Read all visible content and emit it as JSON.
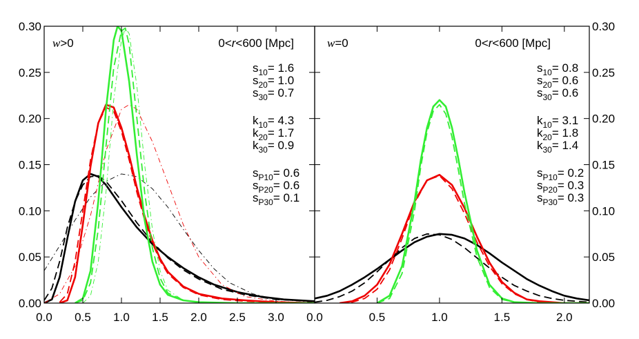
{
  "chart_data": [
    {
      "type": "line",
      "panel": "left",
      "title": "",
      "xlabel": "",
      "ylabel": "",
      "xlim": [
        0.0,
        3.5
      ],
      "ylim": [
        0.0,
        0.3
      ],
      "x_ticks": [
        "0.0",
        "0.5",
        "1.0",
        "1.5",
        "2.0",
        "2.5",
        "3.0"
      ],
      "x_tick_values": [
        0.0,
        0.5,
        1.0,
        1.5,
        2.0,
        2.5,
        3.0
      ],
      "y_ticks": [
        "0.00",
        "0.05",
        "0.10",
        "0.15",
        "0.20",
        "0.25",
        "0.30"
      ],
      "y_tick_values": [
        0.0,
        0.05,
        0.1,
        0.15,
        0.2,
        0.25,
        0.3
      ],
      "y_tick_side": "left",
      "corner_label": {
        "italic": "w",
        "rest": ">0"
      },
      "range_label": {
        "pre": "0<",
        "italic": "r",
        "post": "<600 [Mpc]"
      },
      "stats": [
        {
          "name": "s",
          "sub": "10",
          "value": "= 1.6"
        },
        {
          "name": "s",
          "sub": "20",
          "value": "= 1.0"
        },
        {
          "name": "s",
          "sub": "30",
          "value": "= 0.7"
        },
        {
          "name": "k",
          "sub": "10",
          "value": "= 4.3"
        },
        {
          "name": "k",
          "sub": "20",
          "value": "= 1.7"
        },
        {
          "name": "k",
          "sub": "30",
          "value": "= 0.9"
        },
        {
          "name": "s",
          "sub": "P10",
          "value": "= 0.6"
        },
        {
          "name": "s",
          "sub": "P20",
          "value": "= 0.6"
        },
        {
          "name": "s",
          "sub": "P30",
          "value": "= 0.1"
        }
      ],
      "series": [
        {
          "color": "#000000",
          "style": "solid",
          "width": 2.6,
          "x": [
            0.0,
            0.1,
            0.2,
            0.3,
            0.4,
            0.5,
            0.6,
            0.7,
            0.8,
            0.9,
            1.0,
            1.2,
            1.4,
            1.6,
            1.8,
            2.0,
            2.2,
            2.5,
            2.8,
            3.1,
            3.5
          ],
          "y": [
            0.0,
            0.004,
            0.028,
            0.07,
            0.11,
            0.133,
            0.14,
            0.137,
            0.128,
            0.116,
            0.104,
            0.082,
            0.064,
            0.05,
            0.038,
            0.028,
            0.02,
            0.012,
            0.007,
            0.004,
            0.002
          ]
        },
        {
          "color": "#000000",
          "style": "dashed",
          "width": 1.8,
          "x": [
            0.0,
            0.1,
            0.2,
            0.3,
            0.4,
            0.5,
            0.6,
            0.7,
            0.8,
            1.0,
            1.2,
            1.4,
            1.6,
            1.8,
            2.0,
            2.3,
            2.6,
            3.0,
            3.5
          ],
          "y": [
            0.003,
            0.016,
            0.045,
            0.082,
            0.11,
            0.128,
            0.137,
            0.138,
            0.132,
            0.111,
            0.087,
            0.066,
            0.049,
            0.036,
            0.026,
            0.015,
            0.009,
            0.004,
            0.002
          ]
        },
        {
          "color": "#000000",
          "style": "dashdot",
          "width": 0.9,
          "x": [
            0.0,
            0.2,
            0.4,
            0.6,
            0.8,
            1.0,
            1.2,
            1.4,
            1.6,
            1.8,
            2.0,
            2.2,
            2.4,
            2.7,
            3.0,
            3.5
          ],
          "y": [
            0.035,
            0.062,
            0.09,
            0.115,
            0.132,
            0.14,
            0.137,
            0.124,
            0.104,
            0.08,
            0.057,
            0.037,
            0.022,
            0.01,
            0.004,
            0.001
          ]
        },
        {
          "color": "#ee0000",
          "style": "solid",
          "width": 2.6,
          "x": [
            0.2,
            0.3,
            0.4,
            0.5,
            0.6,
            0.7,
            0.8,
            0.9,
            1.0,
            1.1,
            1.2,
            1.3,
            1.4,
            1.5,
            1.6,
            1.8,
            2.0,
            2.3,
            2.6,
            3.0,
            3.5
          ],
          "y": [
            0.0,
            0.003,
            0.028,
            0.085,
            0.148,
            0.195,
            0.215,
            0.212,
            0.19,
            0.16,
            0.125,
            0.094,
            0.068,
            0.048,
            0.034,
            0.018,
            0.01,
            0.005,
            0.003,
            0.001,
            0.0
          ]
        },
        {
          "color": "#ee0000",
          "style": "dashed",
          "width": 1.8,
          "x": [
            0.2,
            0.3,
            0.4,
            0.5,
            0.6,
            0.7,
            0.8,
            0.9,
            1.0,
            1.1,
            1.2,
            1.3,
            1.4,
            1.5,
            1.6,
            1.8,
            2.0,
            2.3,
            2.6,
            3.0,
            3.5
          ],
          "y": [
            0.001,
            0.01,
            0.045,
            0.1,
            0.155,
            0.195,
            0.212,
            0.208,
            0.186,
            0.155,
            0.12,
            0.09,
            0.065,
            0.046,
            0.032,
            0.017,
            0.009,
            0.004,
            0.002,
            0.001,
            0.0
          ]
        },
        {
          "color": "#ee0000",
          "style": "dashdot",
          "width": 0.9,
          "x": [
            0.0,
            0.2,
            0.4,
            0.6,
            0.8,
            1.0,
            1.1,
            1.2,
            1.4,
            1.6,
            1.8,
            2.0,
            2.3,
            2.6,
            3.0,
            3.5
          ],
          "y": [
            0.0,
            0.01,
            0.04,
            0.095,
            0.165,
            0.21,
            0.215,
            0.21,
            0.175,
            0.13,
            0.085,
            0.05,
            0.02,
            0.007,
            0.002,
            0.0
          ]
        },
        {
          "color": "#33ee33",
          "style": "solid",
          "width": 2.6,
          "x": [
            0.4,
            0.5,
            0.6,
            0.7,
            0.8,
            0.9,
            0.95,
            1.0,
            1.1,
            1.2,
            1.3,
            1.4,
            1.5,
            1.6,
            1.8,
            2.0,
            2.5,
            3.0,
            3.5
          ],
          "y": [
            0.0,
            0.005,
            0.035,
            0.11,
            0.21,
            0.285,
            0.3,
            0.295,
            0.24,
            0.16,
            0.09,
            0.045,
            0.02,
            0.009,
            0.003,
            0.001,
            0.0,
            0.0,
            0.0
          ]
        },
        {
          "color": "#33ee33",
          "style": "dashed",
          "width": 1.8,
          "x": [
            0.4,
            0.5,
            0.6,
            0.7,
            0.8,
            0.9,
            1.0,
            1.05,
            1.1,
            1.2,
            1.3,
            1.4,
            1.5,
            1.6,
            1.8,
            2.0,
            2.5,
            3.5
          ],
          "y": [
            0.0,
            0.003,
            0.022,
            0.08,
            0.17,
            0.255,
            0.295,
            0.298,
            0.28,
            0.2,
            0.12,
            0.06,
            0.027,
            0.011,
            0.003,
            0.001,
            0.0,
            0.0
          ]
        },
        {
          "color": "#33ee33",
          "style": "dashdot",
          "width": 0.9,
          "x": [
            0.5,
            0.6,
            0.7,
            0.8,
            0.9,
            1.0,
            1.05,
            1.1,
            1.2,
            1.3,
            1.4,
            1.5,
            1.6,
            1.8,
            2.0,
            2.5
          ],
          "y": [
            0.0,
            0.008,
            0.045,
            0.12,
            0.22,
            0.285,
            0.298,
            0.292,
            0.235,
            0.15,
            0.08,
            0.035,
            0.014,
            0.003,
            0.001,
            0.0
          ]
        }
      ]
    },
    {
      "type": "line",
      "panel": "right",
      "title": "",
      "xlabel": "",
      "ylabel": "",
      "xlim": [
        0.0,
        2.2
      ],
      "ylim": [
        0.0,
        0.3
      ],
      "x_ticks": [
        "0.0",
        "0.5",
        "1.0",
        "1.5",
        "2.0"
      ],
      "x_tick_values": [
        0.0,
        0.5,
        1.0,
        1.5,
        2.0
      ],
      "y_ticks": [
        "0.00",
        "0.05",
        "0.10",
        "0.15",
        "0.20",
        "0.25",
        "0.30"
      ],
      "y_tick_values": [
        0.0,
        0.05,
        0.1,
        0.15,
        0.2,
        0.25,
        0.3
      ],
      "y_tick_side": "right",
      "corner_label": {
        "italic": "w",
        "rest": "=0"
      },
      "range_label": {
        "pre": "0<",
        "italic": "r",
        "post": "<600 [Mpc]"
      },
      "stats": [
        {
          "name": "s",
          "sub": "10",
          "value": "= 0.8"
        },
        {
          "name": "s",
          "sub": "20",
          "value": "= 0.6"
        },
        {
          "name": "s",
          "sub": "30",
          "value": "= 0.6"
        },
        {
          "name": "k",
          "sub": "10",
          "value": "= 3.1"
        },
        {
          "name": "k",
          "sub": "20",
          "value": "= 1.8"
        },
        {
          "name": "k",
          "sub": "30",
          "value": "= 1.4"
        },
        {
          "name": "s",
          "sub": "P10",
          "value": "= 0.2"
        },
        {
          "name": "s",
          "sub": "P20",
          "value": "= 0.3"
        },
        {
          "name": "s",
          "sub": "P30",
          "value": "= 0.3"
        }
      ],
      "series": [
        {
          "color": "#000000",
          "style": "solid",
          "width": 2.6,
          "x": [
            0.0,
            0.1,
            0.2,
            0.3,
            0.4,
            0.5,
            0.6,
            0.7,
            0.8,
            0.9,
            1.0,
            1.1,
            1.2,
            1.3,
            1.4,
            1.5,
            1.6,
            1.7,
            1.8,
            1.9,
            2.0,
            2.1,
            2.2
          ],
          "y": [
            0.005,
            0.008,
            0.013,
            0.02,
            0.028,
            0.037,
            0.047,
            0.057,
            0.066,
            0.072,
            0.075,
            0.074,
            0.07,
            0.063,
            0.054,
            0.044,
            0.035,
            0.026,
            0.019,
            0.013,
            0.008,
            0.005,
            0.003
          ]
        },
        {
          "color": "#000000",
          "style": "dashed",
          "width": 1.8,
          "x": [
            0.0,
            0.1,
            0.2,
            0.3,
            0.4,
            0.5,
            0.6,
            0.7,
            0.8,
            0.9,
            1.0,
            1.1,
            1.2,
            1.3,
            1.4,
            1.5,
            1.6,
            1.7,
            1.8,
            1.9,
            2.0,
            2.2
          ],
          "y": [
            0.001,
            0.003,
            0.007,
            0.013,
            0.022,
            0.034,
            0.047,
            0.06,
            0.07,
            0.075,
            0.074,
            0.069,
            0.06,
            0.049,
            0.038,
            0.028,
            0.019,
            0.013,
            0.008,
            0.005,
            0.003,
            0.001
          ]
        },
        {
          "color": "#ee0000",
          "style": "solid",
          "width": 2.6,
          "x": [
            0.2,
            0.3,
            0.4,
            0.5,
            0.6,
            0.7,
            0.8,
            0.9,
            1.0,
            1.1,
            1.2,
            1.3,
            1.4,
            1.5,
            1.6,
            1.7,
            1.8,
            2.0,
            2.2
          ],
          "y": [
            0.0,
            0.002,
            0.008,
            0.02,
            0.042,
            0.075,
            0.11,
            0.133,
            0.139,
            0.128,
            0.103,
            0.072,
            0.044,
            0.023,
            0.011,
            0.004,
            0.002,
            0.0,
            0.0
          ]
        },
        {
          "color": "#ee0000",
          "style": "dashed",
          "width": 1.8,
          "x": [
            0.2,
            0.3,
            0.4,
            0.5,
            0.6,
            0.7,
            0.8,
            0.9,
            1.0,
            1.1,
            1.2,
            1.3,
            1.4,
            1.5,
            1.6,
            1.7,
            1.8,
            2.0,
            2.2
          ],
          "y": [
            0.0,
            0.001,
            0.005,
            0.015,
            0.036,
            0.07,
            0.108,
            0.133,
            0.138,
            0.124,
            0.097,
            0.066,
            0.04,
            0.021,
            0.01,
            0.004,
            0.001,
            0.0,
            0.0
          ]
        },
        {
          "color": "#33ee33",
          "style": "solid",
          "width": 2.6,
          "x": [
            0.5,
            0.6,
            0.7,
            0.8,
            0.85,
            0.9,
            0.95,
            1.0,
            1.05,
            1.1,
            1.15,
            1.2,
            1.3,
            1.4,
            1.5,
            1.6,
            1.8,
            2.2
          ],
          "y": [
            0.0,
            0.008,
            0.04,
            0.11,
            0.155,
            0.19,
            0.213,
            0.22,
            0.213,
            0.19,
            0.157,
            0.12,
            0.057,
            0.02,
            0.005,
            0.001,
            0.0,
            0.0
          ]
        },
        {
          "color": "#33ee33",
          "style": "dashed",
          "width": 1.8,
          "x": [
            0.5,
            0.6,
            0.7,
            0.8,
            0.85,
            0.9,
            0.95,
            1.0,
            1.05,
            1.1,
            1.15,
            1.2,
            1.3,
            1.4,
            1.5,
            1.6,
            1.8,
            2.2
          ],
          "y": [
            0.0,
            0.005,
            0.032,
            0.1,
            0.148,
            0.185,
            0.208,
            0.215,
            0.205,
            0.18,
            0.145,
            0.108,
            0.05,
            0.017,
            0.004,
            0.001,
            0.0,
            0.0
          ]
        }
      ]
    }
  ]
}
